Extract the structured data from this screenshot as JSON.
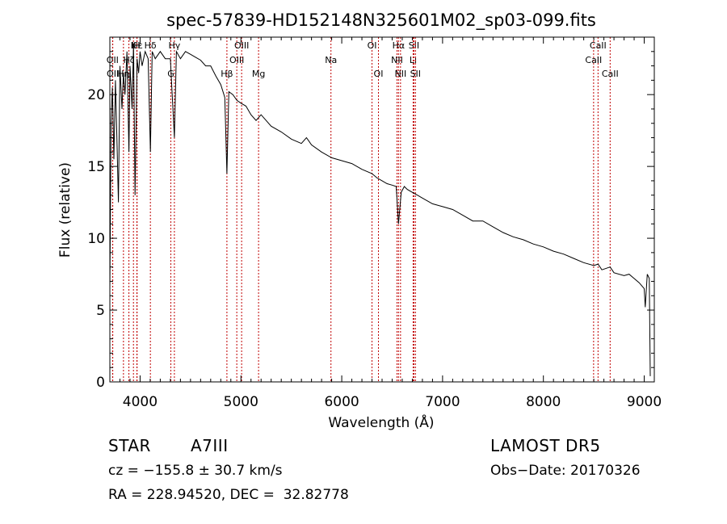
{
  "chart_data": {
    "type": "line",
    "title": "spec-57839-HD152148N325601M02_sp03-099.fits",
    "xlabel": "Wavelength (Å)",
    "ylabel": "Flux (relative)",
    "xlim": [
      3700,
      9100
    ],
    "ylim": [
      0,
      24
    ],
    "x_ticks": [
      4000,
      5000,
      6000,
      7000,
      8000,
      9000
    ],
    "y_ticks": [
      0,
      5,
      10,
      15,
      20
    ],
    "series": [
      {
        "x": [
          3700,
          3712,
          3725,
          3740,
          3755,
          3770,
          3785,
          3800,
          3820,
          3835,
          3850,
          3870,
          3889,
          3900,
          3920,
          3935,
          3950,
          3970,
          3985,
          4000,
          4020,
          4050,
          4080,
          4102,
          4120,
          4150,
          4200,
          4250,
          4300,
          4340,
          4360,
          4400,
          4450,
          4500,
          4550,
          4600,
          4650,
          4700,
          4750,
          4800,
          4840,
          4861,
          4880,
          4920,
          4960,
          5000,
          5050,
          5100,
          5150,
          5200,
          5300,
          5400,
          5500,
          5600,
          5650,
          5700,
          5800,
          5900,
          6000,
          6100,
          6200,
          6300,
          6350,
          6400,
          6450,
          6500,
          6540,
          6563,
          6590,
          6620,
          6650,
          6700,
          6750,
          6800,
          6900,
          7000,
          7100,
          7200,
          7300,
          7400,
          7500,
          7600,
          7700,
          7800,
          7900,
          8000,
          8100,
          8200,
          8300,
          8400,
          8500,
          8542,
          8580,
          8662,
          8700,
          8800,
          8850,
          8900,
          8950,
          9000,
          9010,
          9030,
          9050,
          9060
        ],
        "y": [
          6.5,
          18,
          20.5,
          15.5,
          21,
          17,
          12.5,
          22,
          19,
          21.5,
          20,
          23,
          16,
          22,
          19,
          23.5,
          13,
          22.5,
          21.5,
          23,
          22,
          23,
          22.5,
          16,
          23,
          22.5,
          23,
          22.5,
          22.5,
          17,
          23,
          22.5,
          23,
          22.8,
          22.6,
          22.4,
          22,
          22,
          21.3,
          20.7,
          19.8,
          14.5,
          20.2,
          20,
          19.6,
          19.4,
          19.2,
          18.6,
          18.2,
          18.6,
          17.8,
          17.4,
          16.9,
          16.6,
          17,
          16.5,
          16,
          15.6,
          15.4,
          15.2,
          14.8,
          14.5,
          14.2,
          14,
          13.8,
          13.7,
          13.6,
          11,
          13.2,
          13.6,
          13.4,
          13.2,
          13,
          12.8,
          12.4,
          12.2,
          12,
          11.6,
          11.2,
          11.2,
          10.8,
          10.4,
          10.1,
          9.9,
          9.6,
          9.4,
          9.1,
          8.9,
          8.6,
          8.3,
          8.1,
          8.2,
          7.8,
          8,
          7.6,
          7.4,
          7.5,
          7.2,
          6.9,
          6.5,
          5.2,
          7.5,
          7.2,
          0.4
        ]
      }
    ],
    "line_markers": [
      {
        "label": "Hε",
        "wavelength": 3970,
        "row": 0
      },
      {
        "label": "K",
        "wavelength": 3934,
        "row": 0
      },
      {
        "label": "H",
        "wavelength": 3968,
        "row": 0
      },
      {
        "label": "OII",
        "wavelength": 3727,
        "row": 1
      },
      {
        "label": "Hζ",
        "wavelength": 3889,
        "row": 1
      },
      {
        "label": "Hδ",
        "wavelength": 4102,
        "row": 0
      },
      {
        "label": "OII",
        "wavelength": 3729,
        "row": 2
      },
      {
        "label": "Hη",
        "wavelength": 3835,
        "row": 2
      },
      {
        "label": "Hγ",
        "wavelength": 4340,
        "row": 0
      },
      {
        "label": "G",
        "wavelength": 4305,
        "row": 2
      },
      {
        "label": "Hβ",
        "wavelength": 4861,
        "row": 2
      },
      {
        "label": "OIII",
        "wavelength": 4959,
        "row": 1
      },
      {
        "label": "OIII",
        "wavelength": 5007,
        "row": 0
      },
      {
        "label": "Mg",
        "wavelength": 5175,
        "row": 2
      },
      {
        "label": "Na",
        "wavelength": 5893,
        "row": 1
      },
      {
        "label": "OI",
        "wavelength": 6300,
        "row": 0
      },
      {
        "label": "OI",
        "wavelength": 6364,
        "row": 2
      },
      {
        "label": "Hα",
        "wavelength": 6563,
        "row": 0
      },
      {
        "label": "NII",
        "wavelength": 6548,
        "row": 1
      },
      {
        "label": "NII",
        "wavelength": 6583,
        "row": 2
      },
      {
        "label": "SII",
        "wavelength": 6716,
        "row": 0
      },
      {
        "label": "Li",
        "wavelength": 6708,
        "row": 1
      },
      {
        "label": "SII",
        "wavelength": 6731,
        "row": 2
      },
      {
        "label": "CaII",
        "wavelength": 8542,
        "row": 0
      },
      {
        "label": "CaII",
        "wavelength": 8498,
        "row": 1
      },
      {
        "label": "CaII",
        "wavelength": 8662,
        "row": 2
      }
    ]
  },
  "info": {
    "object_class": "STAR",
    "subclass": "A7III",
    "survey": "LAMOST DR5",
    "cz": "cz = −155.8 ± 30.7 km/s",
    "obs_date": "Obs−Date: 20170326",
    "coords": "RA = 228.94520, DEC =  32.82778"
  }
}
